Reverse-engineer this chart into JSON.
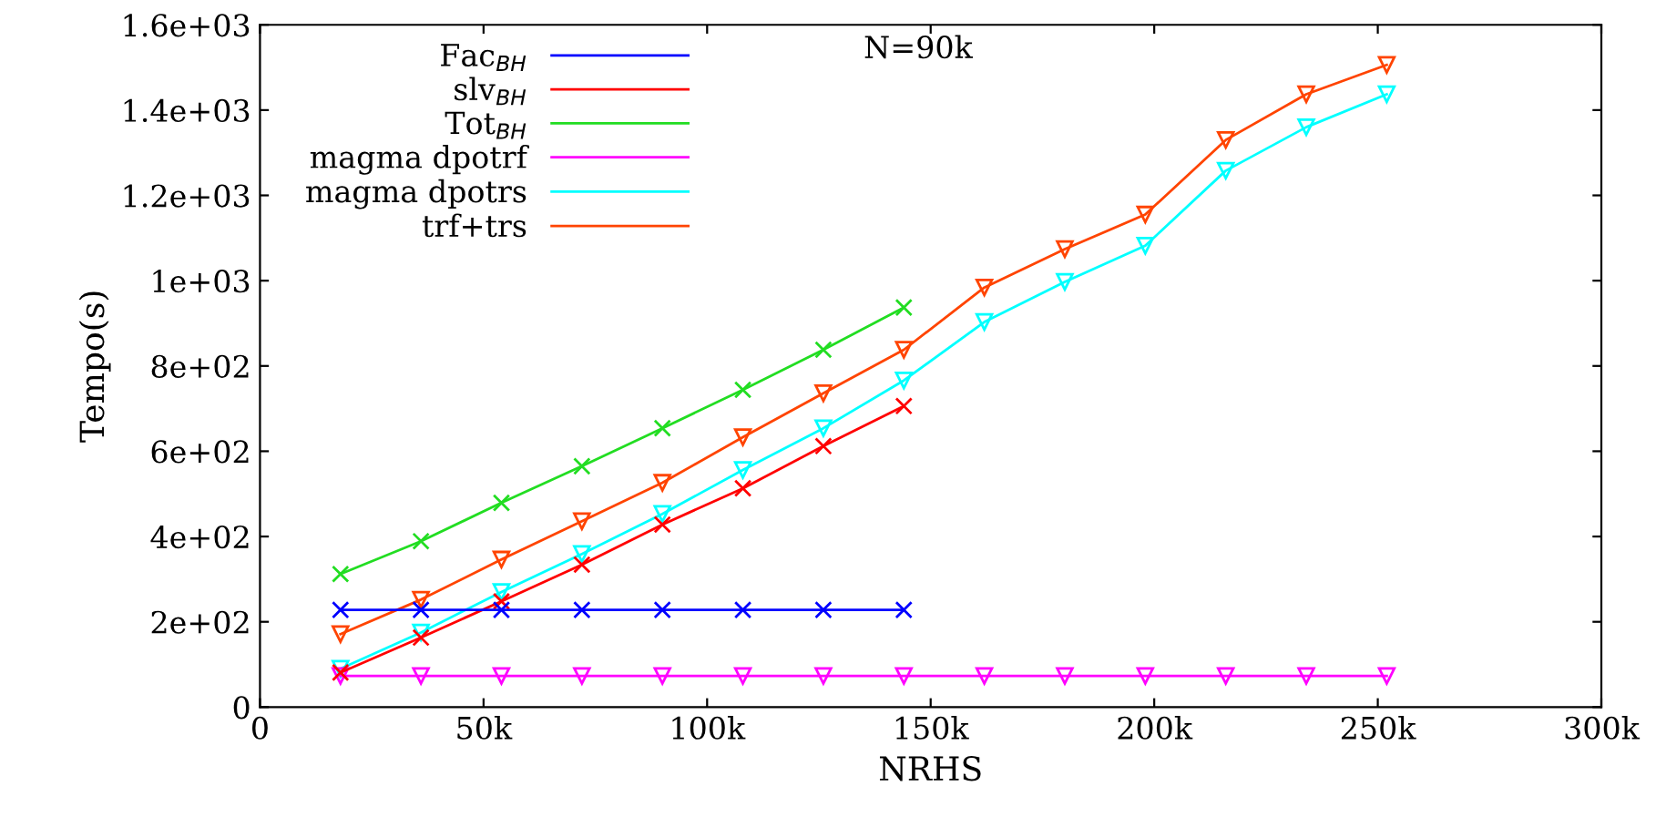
{
  "chart_data": {
    "type": "line",
    "xlabel": "NRHS",
    "ylabel": "Tempo(s)",
    "annotations": [
      "N=90k"
    ],
    "x": [
      18000,
      36000,
      54000,
      72000,
      90000,
      108000,
      126000,
      144000,
      162000,
      180000,
      198000,
      216000,
      234000,
      252000
    ],
    "series": [
      {
        "name": "Fac$_{BH}$",
        "color": "#0000ff",
        "marker": "cross",
        "values": [
          228,
          228,
          228,
          228,
          228,
          228,
          228,
          228,
          null,
          null,
          null,
          null,
          null,
          null
        ]
      },
      {
        "name": "slv$_{BH}$",
        "color": "#ff0000",
        "marker": "cross",
        "values": [
          81,
          163,
          248,
          334,
          428,
          513,
          612,
          706,
          null,
          null,
          null,
          null,
          null,
          null
        ]
      },
      {
        "name": "Tot$_{BH}$",
        "color": "#22dd22",
        "marker": "cross",
        "values": [
          312,
          389,
          479,
          565,
          654,
          744,
          838,
          937,
          null,
          null,
          null,
          null,
          null,
          null
        ]
      },
      {
        "name": "magma dpotrf",
        "color": "#ff00ff",
        "marker": "triangle",
        "values": [
          73,
          73,
          73,
          73,
          73,
          73,
          73,
          73,
          73,
          73,
          73,
          73,
          73,
          73
        ]
      },
      {
        "name": "magma dpotrs",
        "color": "#00ffff",
        "marker": "triangle",
        "values": [
          90,
          175,
          270,
          359,
          453,
          556,
          654,
          766,
          903,
          997,
          1082,
          1258,
          1360,
          1437
        ]
      },
      {
        "name": "trf+trs",
        "color": "#ff4400",
        "marker": "triangle",
        "values": [
          171,
          252,
          346,
          436,
          526,
          633,
          736,
          838,
          984,
          1074,
          1155,
          1330,
          1437,
          1506
        ]
      }
    ],
    "xlim": [
      0,
      300000
    ],
    "xticks": [
      {
        "value": 0,
        "label": "0"
      },
      {
        "value": 50000,
        "label": "50k"
      },
      {
        "value": 100000,
        "label": "100k"
      },
      {
        "value": 150000,
        "label": "150k"
      },
      {
        "value": 200000,
        "label": "200k"
      },
      {
        "value": 250000,
        "label": "250k"
      },
      {
        "value": 300000,
        "label": "300k"
      }
    ],
    "ylim": [
      0,
      1600
    ],
    "yticks": [
      {
        "value": 0,
        "label": "0"
      },
      {
        "value": 200,
        "label": "2e+02"
      },
      {
        "value": 400,
        "label": "4e+02"
      },
      {
        "value": 600,
        "label": "6e+02"
      },
      {
        "value": 800,
        "label": "8e+02"
      },
      {
        "value": 1000,
        "label": "1e+03"
      },
      {
        "value": 1200,
        "label": "1.2e+03"
      },
      {
        "value": 1400,
        "label": "1.4e+03"
      },
      {
        "value": 1600,
        "label": "1.6e+03"
      }
    ],
    "grid": false,
    "legend": "top left",
    "line_style": "solid"
  }
}
